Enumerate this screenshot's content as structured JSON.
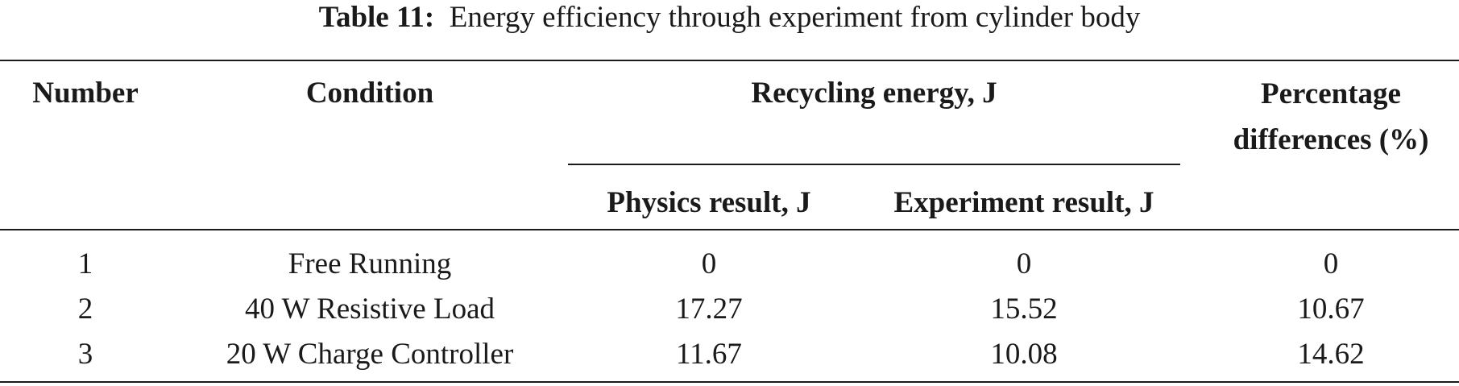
{
  "caption": {
    "label": "Table 11:",
    "text": "Energy efficiency through experiment from cylinder body"
  },
  "header": {
    "number": "Number",
    "condition": "Condition",
    "recycling": "Recycling energy, J",
    "physics": "Physics result, J",
    "experiment": "Experiment result, J",
    "percentage": "Percentage differences (%)"
  },
  "table": {
    "rows": [
      [
        "1",
        "Free Running",
        "0",
        "0",
        "0"
      ],
      [
        "2",
        "40 W Resistive Load",
        "17.27",
        "15.52",
        "10.67"
      ],
      [
        "3",
        "20 W Charge Controller",
        "11.67",
        "10.08",
        "14.62"
      ]
    ]
  }
}
